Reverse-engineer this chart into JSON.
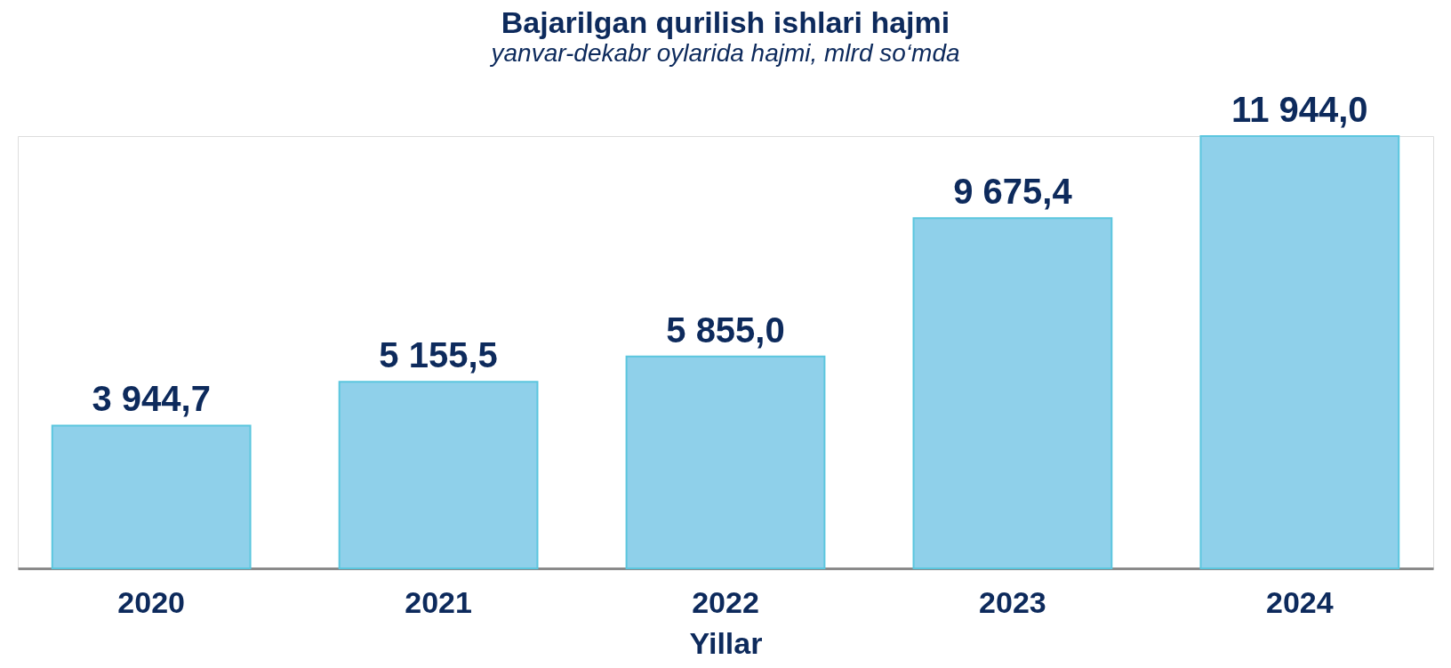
{
  "chart_data": {
    "type": "bar",
    "title": "Bajarilgan qurilish ishlari hajmi",
    "subtitle": "yanvar-dekabr oylarida hajmi, mlrd so‘mda",
    "xlabel": "Yillar",
    "categories": [
      "2020",
      "2021",
      "2022",
      "2023",
      "2024"
    ],
    "values": [
      3944.7,
      5155.5,
      5855.0,
      9675.4,
      11944.0
    ],
    "value_labels": [
      "3 944,7",
      "5 155,5",
      "5 855,0",
      "9 675,4",
      "11 944,0"
    ],
    "color": "#8fd0ea"
  }
}
